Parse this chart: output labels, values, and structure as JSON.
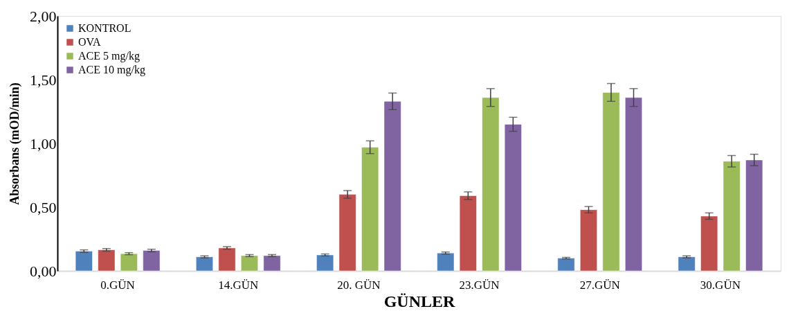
{
  "chart_data": {
    "type": "bar",
    "xlabel": "GÜNLER",
    "ylabel": "Absorbans (mOD/min)",
    "categories": [
      "0.GÜN",
      "14.GÜN",
      "20. GÜN",
      "23.GÜN",
      "27.GÜN",
      "30.GÜN"
    ],
    "series": [
      {
        "name": "KONTROL",
        "color": "#4f81bd",
        "values": [
          0.155,
          0.11,
          0.125,
          0.14,
          0.1,
          0.11
        ],
        "errors": [
          0.01,
          0.008,
          0.008,
          0.008,
          0.006,
          0.008
        ]
      },
      {
        "name": "OVA",
        "color": "#c0504d",
        "values": [
          0.165,
          0.18,
          0.6,
          0.59,
          0.48,
          0.43
        ],
        "errors": [
          0.01,
          0.01,
          0.03,
          0.03,
          0.025,
          0.025
        ]
      },
      {
        "name": "ACE 5 mg/kg",
        "color": "#9bbb59",
        "values": [
          0.135,
          0.12,
          0.97,
          1.36,
          1.4,
          0.86
        ],
        "errors": [
          0.008,
          0.008,
          0.05,
          0.07,
          0.07,
          0.045
        ]
      },
      {
        "name": "ACE 10 mg/kg",
        "color": "#8064a2",
        "values": [
          0.16,
          0.12,
          1.33,
          1.15,
          1.36,
          0.87
        ],
        "errors": [
          0.01,
          0.008,
          0.065,
          0.055,
          0.07,
          0.045
        ]
      }
    ],
    "ylim": [
      0,
      2
    ],
    "yticks": [
      {
        "value": 0,
        "label": "0,00"
      },
      {
        "value": 0.5,
        "label": "0,50"
      },
      {
        "value": 1,
        "label": "1,00"
      },
      {
        "value": 1.5,
        "label": "1,50"
      },
      {
        "value": 2,
        "label": "2,00"
      }
    ],
    "legend": "top left",
    "grid": false
  }
}
